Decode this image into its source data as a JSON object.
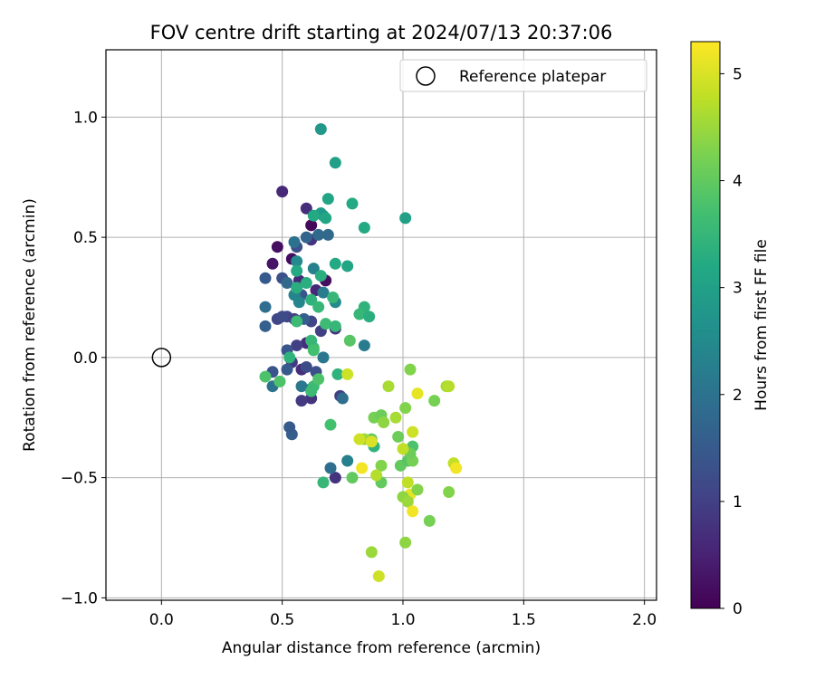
{
  "chart_data": {
    "type": "scatter",
    "title": "FOV centre drift starting at 2024/07/13 20:37:06",
    "xlabel": "Angular distance from reference (arcmin)",
    "ylabel": "Rotation from reference (arcmin)",
    "xlim": [
      -0.23,
      2.05
    ],
    "ylim": [
      -1.01,
      1.28
    ],
    "x_ticks": [
      0.0,
      0.5,
      1.0,
      1.5,
      2.0
    ],
    "x_tick_labels": [
      "0.0",
      "0.5",
      "1.0",
      "1.5",
      "2.0"
    ],
    "y_ticks": [
      -1.0,
      -0.5,
      0.0,
      0.5,
      1.0
    ],
    "y_tick_labels": [
      "−1.0",
      "−0.5",
      "0.0",
      "0.5",
      "1.0"
    ],
    "grid": true,
    "legend": {
      "placement": "top-right",
      "entries": [
        "Reference platepar"
      ]
    },
    "reference_point": {
      "x": 0.0,
      "y": 0.0,
      "name": "Reference platepar"
    },
    "colorbar": {
      "label": "Hours from first FF file",
      "colormap": "viridis",
      "range": [
        0,
        5.3
      ],
      "ticks": [
        0,
        1,
        2,
        3,
        4,
        5
      ],
      "tick_labels": [
        "0",
        "1",
        "2",
        "3",
        "4",
        "5"
      ]
    },
    "points": [
      {
        "x": 0.62,
        "y": 0.55,
        "h": 0.1
      },
      {
        "x": 0.48,
        "y": 0.46,
        "h": 0.2
      },
      {
        "x": 0.54,
        "y": 0.41,
        "h": 0.15
      },
      {
        "x": 0.46,
        "y": 0.39,
        "h": 0.3
      },
      {
        "x": 0.68,
        "y": 0.32,
        "h": 0.2
      },
      {
        "x": 0.5,
        "y": 0.69,
        "h": 0.6
      },
      {
        "x": 0.6,
        "y": 0.62,
        "h": 0.7
      },
      {
        "x": 0.62,
        "y": 0.49,
        "h": 0.8
      },
      {
        "x": 0.57,
        "y": 0.32,
        "h": 0.6
      },
      {
        "x": 0.64,
        "y": 0.28,
        "h": 0.6
      },
      {
        "x": 0.58,
        "y": -0.05,
        "h": 0.7
      },
      {
        "x": 0.6,
        "y": 0.06,
        "h": 0.7
      },
      {
        "x": 0.72,
        "y": 0.12,
        "h": 0.8
      },
      {
        "x": 0.54,
        "y": -0.02,
        "h": 0.9
      },
      {
        "x": 0.72,
        "y": -0.5,
        "h": 0.8
      },
      {
        "x": 0.62,
        "y": -0.17,
        "h": 0.8
      },
      {
        "x": 0.58,
        "y": -0.18,
        "h": 0.9
      },
      {
        "x": 0.74,
        "y": -0.16,
        "h": 1.0
      },
      {
        "x": 0.56,
        "y": 0.05,
        "h": 1.0
      },
      {
        "x": 0.48,
        "y": 0.16,
        "h": 1.1
      },
      {
        "x": 0.52,
        "y": 0.17,
        "h": 1.1
      },
      {
        "x": 0.55,
        "y": 0.16,
        "h": 1.0
      },
      {
        "x": 0.62,
        "y": 0.15,
        "h": 1.1
      },
      {
        "x": 0.66,
        "y": 0.11,
        "h": 1.0
      },
      {
        "x": 0.6,
        "y": -0.04,
        "h": 1.2
      },
      {
        "x": 0.64,
        "y": -0.06,
        "h": 1.3
      },
      {
        "x": 0.5,
        "y": 0.17,
        "h": 1.2
      },
      {
        "x": 0.56,
        "y": 0.46,
        "h": 1.3
      },
      {
        "x": 0.58,
        "y": 0.26,
        "h": 1.4
      },
      {
        "x": 0.5,
        "y": 0.33,
        "h": 1.3
      },
      {
        "x": 0.52,
        "y": 0.03,
        "h": 1.4
      },
      {
        "x": 0.52,
        "y": -0.05,
        "h": 1.5
      },
      {
        "x": 0.46,
        "y": -0.06,
        "h": 1.4
      },
      {
        "x": 0.43,
        "y": 0.13,
        "h": 1.6
      },
      {
        "x": 0.43,
        "y": 0.33,
        "h": 1.5
      },
      {
        "x": 0.54,
        "y": -0.32,
        "h": 1.6
      },
      {
        "x": 0.53,
        "y": -0.29,
        "h": 1.5
      },
      {
        "x": 0.59,
        "y": 0.16,
        "h": 1.6
      },
      {
        "x": 0.6,
        "y": 0.5,
        "h": 1.7
      },
      {
        "x": 0.65,
        "y": 0.51,
        "h": 1.8
      },
      {
        "x": 0.69,
        "y": 0.51,
        "h": 1.8
      },
      {
        "x": 0.62,
        "y": -0.13,
        "h": 1.7
      },
      {
        "x": 0.7,
        "y": -0.46,
        "h": 1.9
      },
      {
        "x": 0.75,
        "y": -0.17,
        "h": 1.9
      },
      {
        "x": 0.52,
        "y": 0.31,
        "h": 1.8
      },
      {
        "x": 0.55,
        "y": 0.48,
        "h": 2.0
      },
      {
        "x": 0.46,
        "y": -0.12,
        "h": 2.0
      },
      {
        "x": 0.43,
        "y": 0.21,
        "h": 1.9
      },
      {
        "x": 0.67,
        "y": 0.0,
        "h": 2.1
      },
      {
        "x": 0.58,
        "y": -0.12,
        "h": 2.1
      },
      {
        "x": 0.67,
        "y": 0.27,
        "h": 2.2
      },
      {
        "x": 0.84,
        "y": 0.05,
        "h": 2.2
      },
      {
        "x": 0.77,
        "y": -0.43,
        "h": 2.3
      },
      {
        "x": 0.63,
        "y": 0.37,
        "h": 2.3
      },
      {
        "x": 0.55,
        "y": 0.26,
        "h": 2.4
      },
      {
        "x": 0.57,
        "y": 0.23,
        "h": 2.4
      },
      {
        "x": 0.72,
        "y": 0.23,
        "h": 2.5
      },
      {
        "x": 0.56,
        "y": 0.4,
        "h": 2.5
      },
      {
        "x": 0.66,
        "y": 0.95,
        "h": 2.8
      },
      {
        "x": 0.72,
        "y": 0.81,
        "h": 3.0
      },
      {
        "x": 0.69,
        "y": 0.66,
        "h": 3.1
      },
      {
        "x": 0.66,
        "y": 0.6,
        "h": 2.9
      },
      {
        "x": 0.67,
        "y": 0.59,
        "h": 2.8
      },
      {
        "x": 0.63,
        "y": 0.59,
        "h": 3.2
      },
      {
        "x": 0.68,
        "y": 0.58,
        "h": 3.1
      },
      {
        "x": 0.79,
        "y": 0.64,
        "h": 3.2
      },
      {
        "x": 1.01,
        "y": 0.58,
        "h": 3.0
      },
      {
        "x": 0.84,
        "y": 0.54,
        "h": 3.2
      },
      {
        "x": 0.72,
        "y": 0.39,
        "h": 3.2
      },
      {
        "x": 0.77,
        "y": 0.38,
        "h": 3.1
      },
      {
        "x": 0.56,
        "y": 0.36,
        "h": 3.2
      },
      {
        "x": 0.66,
        "y": 0.34,
        "h": 3.3
      },
      {
        "x": 0.6,
        "y": 0.31,
        "h": 3.3
      },
      {
        "x": 0.56,
        "y": 0.29,
        "h": 3.3
      },
      {
        "x": 0.62,
        "y": 0.24,
        "h": 3.4
      },
      {
        "x": 0.71,
        "y": 0.25,
        "h": 3.5
      },
      {
        "x": 0.65,
        "y": 0.21,
        "h": 3.5
      },
      {
        "x": 0.84,
        "y": 0.21,
        "h": 3.4
      },
      {
        "x": 0.82,
        "y": 0.18,
        "h": 3.5
      },
      {
        "x": 0.86,
        "y": 0.17,
        "h": 3.3
      },
      {
        "x": 0.56,
        "y": 0.15,
        "h": 3.6
      },
      {
        "x": 0.68,
        "y": 0.14,
        "h": 3.6
      },
      {
        "x": 0.72,
        "y": 0.13,
        "h": 3.5
      },
      {
        "x": 0.53,
        "y": 0.0,
        "h": 3.4
      },
      {
        "x": 0.63,
        "y": 0.04,
        "h": 3.6
      },
      {
        "x": 0.62,
        "y": 0.07,
        "h": 3.5
      },
      {
        "x": 0.63,
        "y": 0.03,
        "h": 3.7
      },
      {
        "x": 0.43,
        "y": -0.08,
        "h": 3.8
      },
      {
        "x": 0.49,
        "y": -0.1,
        "h": 3.8
      },
      {
        "x": 0.63,
        "y": -0.12,
        "h": 3.6
      },
      {
        "x": 0.65,
        "y": -0.09,
        "h": 3.8
      },
      {
        "x": 0.62,
        "y": -0.14,
        "h": 3.6
      },
      {
        "x": 0.7,
        "y": -0.28,
        "h": 3.7
      },
      {
        "x": 0.67,
        "y": -0.52,
        "h": 3.5
      },
      {
        "x": 0.73,
        "y": -0.07,
        "h": 3.4
      },
      {
        "x": 0.78,
        "y": 0.07,
        "h": 3.9
      },
      {
        "x": 0.88,
        "y": -0.37,
        "h": 3.4
      },
      {
        "x": 0.79,
        "y": -0.5,
        "h": 4.0
      },
      {
        "x": 0.91,
        "y": -0.52,
        "h": 4.0
      },
      {
        "x": 0.88,
        "y": -0.25,
        "h": 4.2
      },
      {
        "x": 0.91,
        "y": -0.24,
        "h": 4.1
      },
      {
        "x": 0.92,
        "y": -0.27,
        "h": 4.4
      },
      {
        "x": 0.87,
        "y": -0.34,
        "h": 4.0
      },
      {
        "x": 0.84,
        "y": -0.34,
        "h": 4.5
      },
      {
        "x": 0.91,
        "y": -0.45,
        "h": 4.3
      },
      {
        "x": 0.98,
        "y": -0.33,
        "h": 4.1
      },
      {
        "x": 0.99,
        "y": -0.45,
        "h": 4.0
      },
      {
        "x": 1.02,
        "y": -0.43,
        "h": 3.9
      },
      {
        "x": 1.04,
        "y": -0.43,
        "h": 4.2
      },
      {
        "x": 1.04,
        "y": -0.37,
        "h": 3.8
      },
      {
        "x": 1.03,
        "y": -0.4,
        "h": 4.1
      },
      {
        "x": 0.97,
        "y": -0.25,
        "h": 4.6
      },
      {
        "x": 1.01,
        "y": -0.21,
        "h": 4.3
      },
      {
        "x": 1.03,
        "y": -0.05,
        "h": 4.3
      },
      {
        "x": 0.94,
        "y": -0.12,
        "h": 4.6
      },
      {
        "x": 1.13,
        "y": -0.18,
        "h": 4.2
      },
      {
        "x": 1.18,
        "y": -0.12,
        "h": 4.6
      },
      {
        "x": 1.19,
        "y": -0.12,
        "h": 4.7
      },
      {
        "x": 1.06,
        "y": -0.15,
        "h": 5.1
      },
      {
        "x": 1.0,
        "y": -0.38,
        "h": 4.8
      },
      {
        "x": 1.04,
        "y": -0.31,
        "h": 4.9
      },
      {
        "x": 0.82,
        "y": -0.34,
        "h": 4.9
      },
      {
        "x": 0.87,
        "y": -0.35,
        "h": 5.0
      },
      {
        "x": 0.83,
        "y": -0.46,
        "h": 5.2
      },
      {
        "x": 0.89,
        "y": -0.49,
        "h": 4.7
      },
      {
        "x": 1.02,
        "y": -0.52,
        "h": 4.8
      },
      {
        "x": 1.03,
        "y": -0.57,
        "h": 5.1
      },
      {
        "x": 1.0,
        "y": -0.58,
        "h": 4.4
      },
      {
        "x": 1.02,
        "y": -0.6,
        "h": 4.5
      },
      {
        "x": 1.06,
        "y": -0.55,
        "h": 4.3
      },
      {
        "x": 1.04,
        "y": -0.64,
        "h": 5.2
      },
      {
        "x": 1.11,
        "y": -0.68,
        "h": 4.2
      },
      {
        "x": 1.01,
        "y": -0.77,
        "h": 4.4
      },
      {
        "x": 1.19,
        "y": -0.56,
        "h": 4.3
      },
      {
        "x": 1.21,
        "y": -0.44,
        "h": 4.8
      },
      {
        "x": 1.22,
        "y": -0.46,
        "h": 5.2
      },
      {
        "x": 0.87,
        "y": -0.81,
        "h": 4.5
      },
      {
        "x": 0.9,
        "y": -0.91,
        "h": 4.9
      },
      {
        "x": 0.77,
        "y": -0.07,
        "h": 4.9
      }
    ]
  }
}
